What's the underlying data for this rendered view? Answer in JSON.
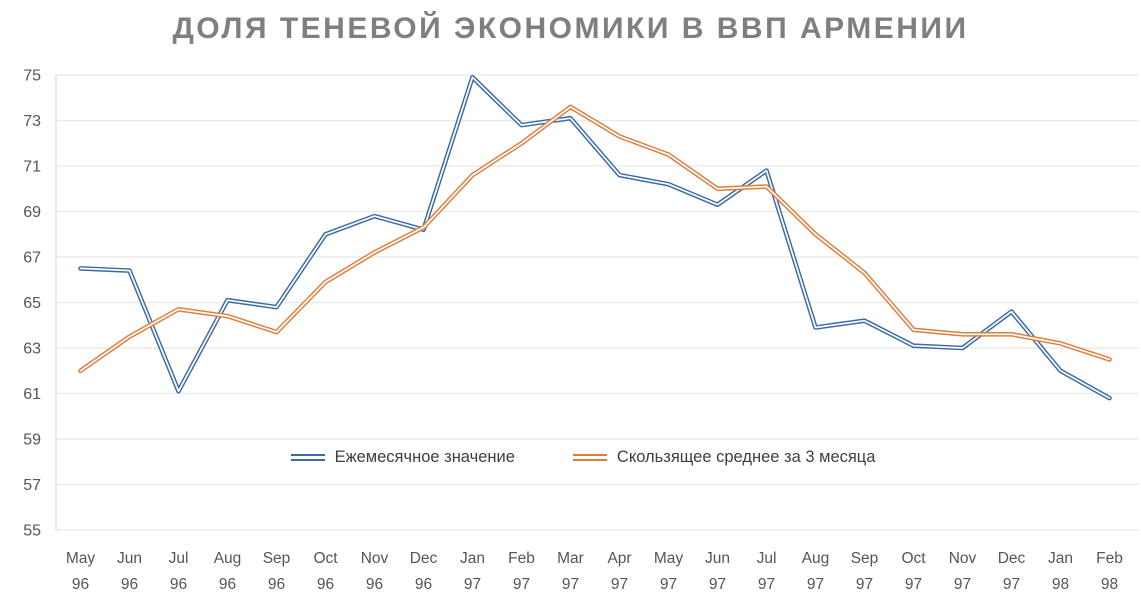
{
  "title": "ДОЛЯ ТЕНЕВОЙ ЭКОНОМИКИ В ВВП АРМЕНИИ",
  "colors": {
    "monthly_line": "#3a6ba4",
    "moving_avg_line": "#dd7e3c",
    "line_inner": "#ffffff",
    "gridline": "#e8e8e8",
    "axis_line": "#d9d9d9",
    "axis_text": "#555555",
    "title_text": "#7f7f7f",
    "legend_text": "#3f3f3f"
  },
  "chart_data": {
    "type": "line",
    "title": "ДОЛЯ ТЕНЕВОЙ ЭКОНОМИКИ В ВВП АРМЕНИИ",
    "xlabel": "",
    "ylabel": "",
    "ylim": [
      55,
      75
    ],
    "yticks": [
      55,
      57,
      59,
      61,
      63,
      65,
      67,
      69,
      71,
      73,
      75
    ],
    "grid": true,
    "legend_position": "bottom-center-inside",
    "line_style": "double-stroke",
    "categories": [
      {
        "month": "May",
        "year": "96"
      },
      {
        "month": "Jun",
        "year": "96"
      },
      {
        "month": "Jul",
        "year": "96"
      },
      {
        "month": "Aug",
        "year": "96"
      },
      {
        "month": "Sep",
        "year": "96"
      },
      {
        "month": "Oct",
        "year": "96"
      },
      {
        "month": "Nov",
        "year": "96"
      },
      {
        "month": "Dec",
        "year": "96"
      },
      {
        "month": "Jan",
        "year": "97"
      },
      {
        "month": "Feb",
        "year": "97"
      },
      {
        "month": "Mar",
        "year": "97"
      },
      {
        "month": "Apr",
        "year": "97"
      },
      {
        "month": "May",
        "year": "97"
      },
      {
        "month": "Jun",
        "year": "97"
      },
      {
        "month": "Jul",
        "year": "97"
      },
      {
        "month": "Aug",
        "year": "97"
      },
      {
        "month": "Sep",
        "year": "97"
      },
      {
        "month": "Oct",
        "year": "97"
      },
      {
        "month": "Nov",
        "year": "97"
      },
      {
        "month": "Dec",
        "year": "97"
      },
      {
        "month": "Jan",
        "year": "98"
      },
      {
        "month": "Feb",
        "year": "98"
      }
    ],
    "series": [
      {
        "name": "Ежемесячное значение",
        "color_key": "monthly_line",
        "values": [
          66.5,
          66.4,
          61.1,
          65.1,
          64.8,
          68.0,
          68.8,
          68.2,
          74.9,
          72.8,
          73.1,
          70.6,
          70.2,
          69.3,
          70.8,
          63.9,
          64.2,
          63.1,
          63.0,
          64.6,
          62.0,
          60.8
        ]
      },
      {
        "name": "Скользящее среднее за 3 месяца",
        "color_key": "moving_avg_line",
        "values": [
          62.0,
          63.5,
          64.7,
          64.4,
          63.7,
          65.9,
          67.2,
          68.3,
          70.6,
          72.0,
          73.6,
          72.3,
          71.5,
          70.0,
          70.1,
          68.0,
          66.3,
          63.8,
          63.6,
          63.6,
          63.2,
          62.5
        ]
      }
    ]
  }
}
